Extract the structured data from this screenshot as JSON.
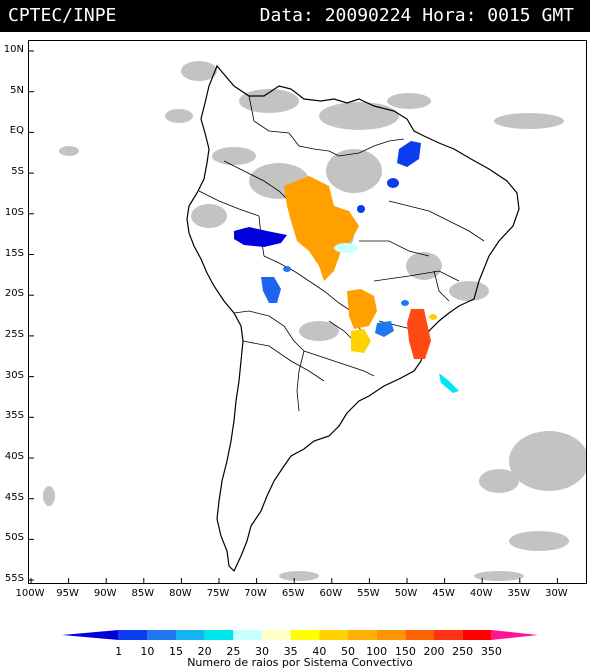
{
  "header": {
    "source": "CPTEC/INPE",
    "date_label": "Data:",
    "date_value": "20090224",
    "hour_label": "Hora:",
    "hour_value": "0015",
    "timezone": "GMT"
  },
  "latitude_labels": [
    "10N",
    "5N",
    "EQ",
    "5S",
    "10S",
    "15S",
    "20S",
    "25S",
    "30S",
    "35S",
    "40S",
    "45S",
    "50S",
    "55S"
  ],
  "longitude_labels": [
    "100W",
    "95W",
    "90W",
    "85W",
    "80W",
    "75W",
    "70W",
    "65W",
    "60W",
    "55W",
    "50W",
    "45W",
    "40W",
    "35W",
    "30W"
  ],
  "legend": {
    "values": [
      "1",
      "10",
      "15",
      "20",
      "25",
      "30",
      "35",
      "40",
      "50",
      "100",
      "150",
      "200",
      "250",
      "350"
    ],
    "colors": [
      "#0000dd",
      "#0a3cf0",
      "#1e78f0",
      "#14b4f0",
      "#00e6f0",
      "#c8ffff",
      "#ffffc8",
      "#ffff00",
      "#ffd200",
      "#ffb000",
      "#ff9600",
      "#ff6400",
      "#ff3214",
      "#ff0000",
      "#ff1493"
    ],
    "title": "Numero de raios por Sistema Convectivo"
  },
  "colors": {
    "header_bg": "#000000",
    "cloud_gray": "#b4b4b4"
  }
}
